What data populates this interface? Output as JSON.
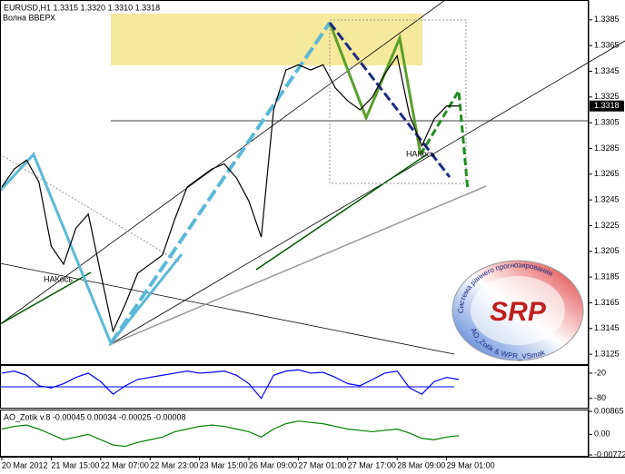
{
  "chart_data": [
    {
      "type": "line",
      "title": "EURUSD,H1 1.3315 1.3320 1.3310 1.3318",
      "annotations": [
        "Волна ВВЕРХ",
        "НАКось",
        "НАКось"
      ],
      "categories": [
        "20 Mar 2012",
        null,
        null,
        null,
        "21 Mar 15:00",
        null,
        null,
        null,
        "22 Mar 07:00",
        null,
        null,
        null,
        "22 Mar 23:00",
        null,
        null,
        null,
        "23 Mar 15:00",
        null,
        null,
        null,
        "26 Mar 09:00",
        null,
        null,
        null,
        "27 Mar 01:00",
        null,
        null,
        null,
        "27 Mar 17:00",
        null,
        null,
        null,
        "28 Mar 09:00",
        null,
        null,
        null,
        "29 Mar 01:00",
        null
      ],
      "values": [
        1.3255,
        1.3269,
        1.3276,
        1.3259,
        1.3209,
        1.3195,
        1.3223,
        1.3234,
        1.3188,
        1.3143,
        1.3164,
        1.3188,
        1.3195,
        1.3202,
        1.323,
        1.3255,
        1.3262,
        1.3269,
        1.3273,
        1.3262,
        1.3244,
        1.3216,
        1.3315,
        1.3346,
        1.335,
        1.3346,
        1.335,
        1.3332,
        1.3322,
        1.3315,
        1.3325,
        1.3343,
        1.3357,
        1.3311,
        1.3287,
        1.3308,
        1.3318,
        1.3318
      ],
      "color": "#000000",
      "current_price": 1.3318,
      "ylim": [
        1.3118,
        1.3399
      ],
      "yticks": [
        1.3385,
        1.3365,
        1.3345,
        1.3325,
        1.3305,
        1.3285,
        1.3265,
        1.3245,
        1.3225,
        1.3205,
        1.3185,
        1.3165,
        1.3145,
        1.3125
      ],
      "grid": false
    },
    {
      "type": "line",
      "values": [
        -20,
        -15,
        -25,
        -50,
        -55,
        -45,
        -30,
        -20,
        -40,
        -70,
        -50,
        -35,
        -30,
        -25,
        -20,
        -15,
        -20,
        -18,
        -15,
        -25,
        -45,
        -80,
        -25,
        -15,
        -12,
        -20,
        -18,
        -30,
        -45,
        -50,
        -35,
        -20,
        -15,
        -55,
        -70,
        -40,
        -30,
        -35
      ],
      "color": "#0000ff",
      "ylim": [
        -100,
        -5
      ],
      "yticks": [
        -20,
        -80
      ],
      "grid": false
    },
    {
      "type": "line",
      "title": "AO_Zotik v.8 -0.00045 0.00034 -0.00025 -0.00008",
      "values": [
        0.002,
        0.003,
        0.0035,
        0.002,
        0,
        -0.002,
        -0.001,
        0,
        -0.002,
        -0.004,
        -0.0045,
        -0.003,
        -0.002,
        -0.001,
        0.001,
        0.002,
        0.003,
        0.0035,
        0.003,
        0.002,
        0.001,
        -0.001,
        0.002,
        0.004,
        0.005,
        0.0045,
        0.004,
        0.003,
        0.002,
        0.0015,
        0.001,
        0.0015,
        0.002,
        0.0005,
        -0.0015,
        -0.002,
        -0.001,
        -0.0005
      ],
      "color": "#008000",
      "ylim": [
        -0.00772,
        0.00865
      ],
      "yticks": [
        0.00865,
        {
          "value": 0,
          "label": "0.00"
        },
        -0.00772
      ],
      "grid": false
    }
  ],
  "logo": {
    "title": "SRP",
    "ring_top": "Система раннего прогнозирования",
    "ring_bottom": "AO_Zotik & WPR_VSmak"
  }
}
